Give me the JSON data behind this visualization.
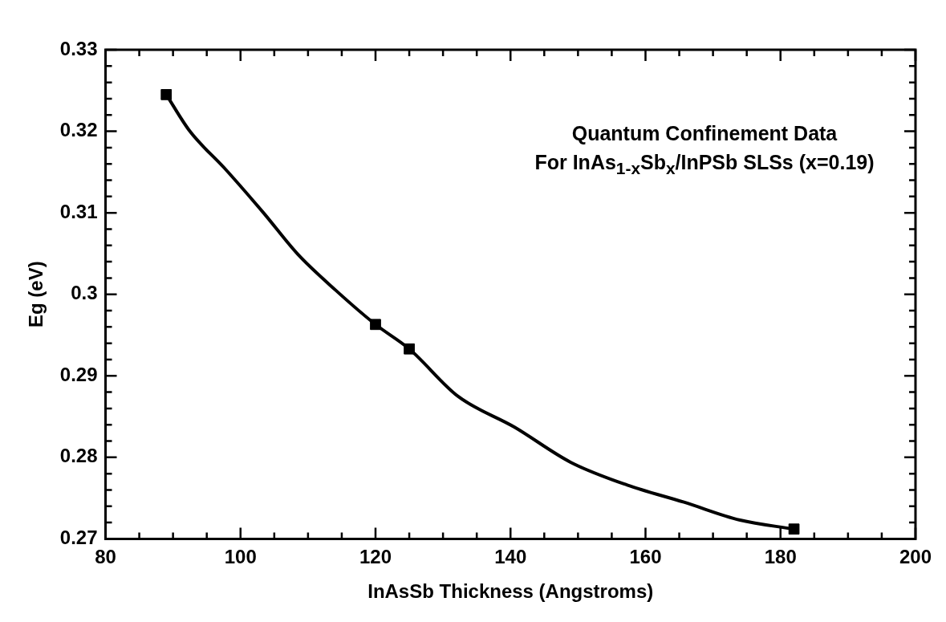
{
  "chart_data": {
    "type": "scatter",
    "title": "Quantum Confinement Data",
    "subtitle": "For InAs$_{1-x}$Sb$_{x}$/InPSb SLSs (x=0.19)",
    "xlabel": "InAsSb Thickness (Angstroms)",
    "ylabel": "Eg (eV)",
    "xlim": [
      80,
      200
    ],
    "ylim": [
      0.27,
      0.33
    ],
    "xticks": [
      80,
      {
        "value": 85,
        "label": null
      },
      {
        "value": 90,
        "label": null
      },
      {
        "value": 95,
        "label": null
      },
      100,
      {
        "value": 105,
        "label": null
      },
      {
        "value": 110,
        "label": null
      },
      {
        "value": 115,
        "label": null
      },
      120,
      {
        "value": 125,
        "label": null
      },
      {
        "value": 130,
        "label": null
      },
      {
        "value": 135,
        "label": null
      },
      140,
      {
        "value": 145,
        "label": null
      },
      {
        "value": 150,
        "label": null
      },
      {
        "value": 155,
        "label": null
      },
      160,
      {
        "value": 165,
        "label": null
      },
      {
        "value": 170,
        "label": null
      },
      {
        "value": 175,
        "label": null
      },
      180,
      {
        "value": 185,
        "label": null
      },
      {
        "value": 190,
        "label": null
      },
      {
        "value": 195,
        "label": null
      },
      200
    ],
    "yticks": [
      0.27,
      {
        "value": 0.272,
        "label": null
      },
      {
        "value": 0.274,
        "label": null
      },
      {
        "value": 0.276,
        "label": null
      },
      {
        "value": 0.278,
        "label": null
      },
      0.28,
      {
        "value": 0.282,
        "label": null
      },
      {
        "value": 0.284,
        "label": null
      },
      {
        "value": 0.286,
        "label": null
      },
      {
        "value": 0.288,
        "label": null
      },
      0.29,
      {
        "value": 0.292,
        "label": null
      },
      {
        "value": 0.294,
        "label": null
      },
      {
        "value": 0.296,
        "label": null
      },
      {
        "value": 0.298,
        "label": null
      },
      0.3,
      {
        "value": 0.302,
        "label": null
      },
      {
        "value": 0.304,
        "label": null
      },
      {
        "value": 0.306,
        "label": null
      },
      {
        "value": 0.308,
        "label": null
      },
      0.31,
      {
        "value": 0.312,
        "label": null
      },
      {
        "value": 0.314,
        "label": null
      },
      {
        "value": 0.316,
        "label": null
      },
      {
        "value": 0.318,
        "label": null
      },
      0.32,
      {
        "value": 0.322,
        "label": null
      },
      {
        "value": 0.324,
        "label": null
      },
      {
        "value": 0.326,
        "label": null
      },
      {
        "value": 0.328,
        "label": null
      },
      0.33
    ],
    "grid": false,
    "legend": false,
    "series": [
      {
        "type": "line",
        "color": "#000000",
        "marker": "none",
        "line_style": "solid",
        "x": [
          89,
          92.5,
          97.6,
          103.4,
          108.5,
          114.1,
          120,
          125,
          132.2,
          140.6,
          148.9,
          157.3,
          165.7,
          174,
          182
        ],
        "values": [
          0.3245,
          0.32,
          0.3155,
          0.31,
          0.3049,
          0.3005,
          0.2963,
          0.2933,
          0.2875,
          0.2837,
          0.2794,
          0.2766,
          0.2745,
          0.2723,
          0.2712
        ]
      },
      {
        "type": "scatter",
        "color": "#000000",
        "marker": "square",
        "x": [
          89,
          120,
          125,
          182
        ],
        "values": [
          0.3245,
          0.2963,
          0.2933,
          0.2712
        ]
      }
    ]
  }
}
